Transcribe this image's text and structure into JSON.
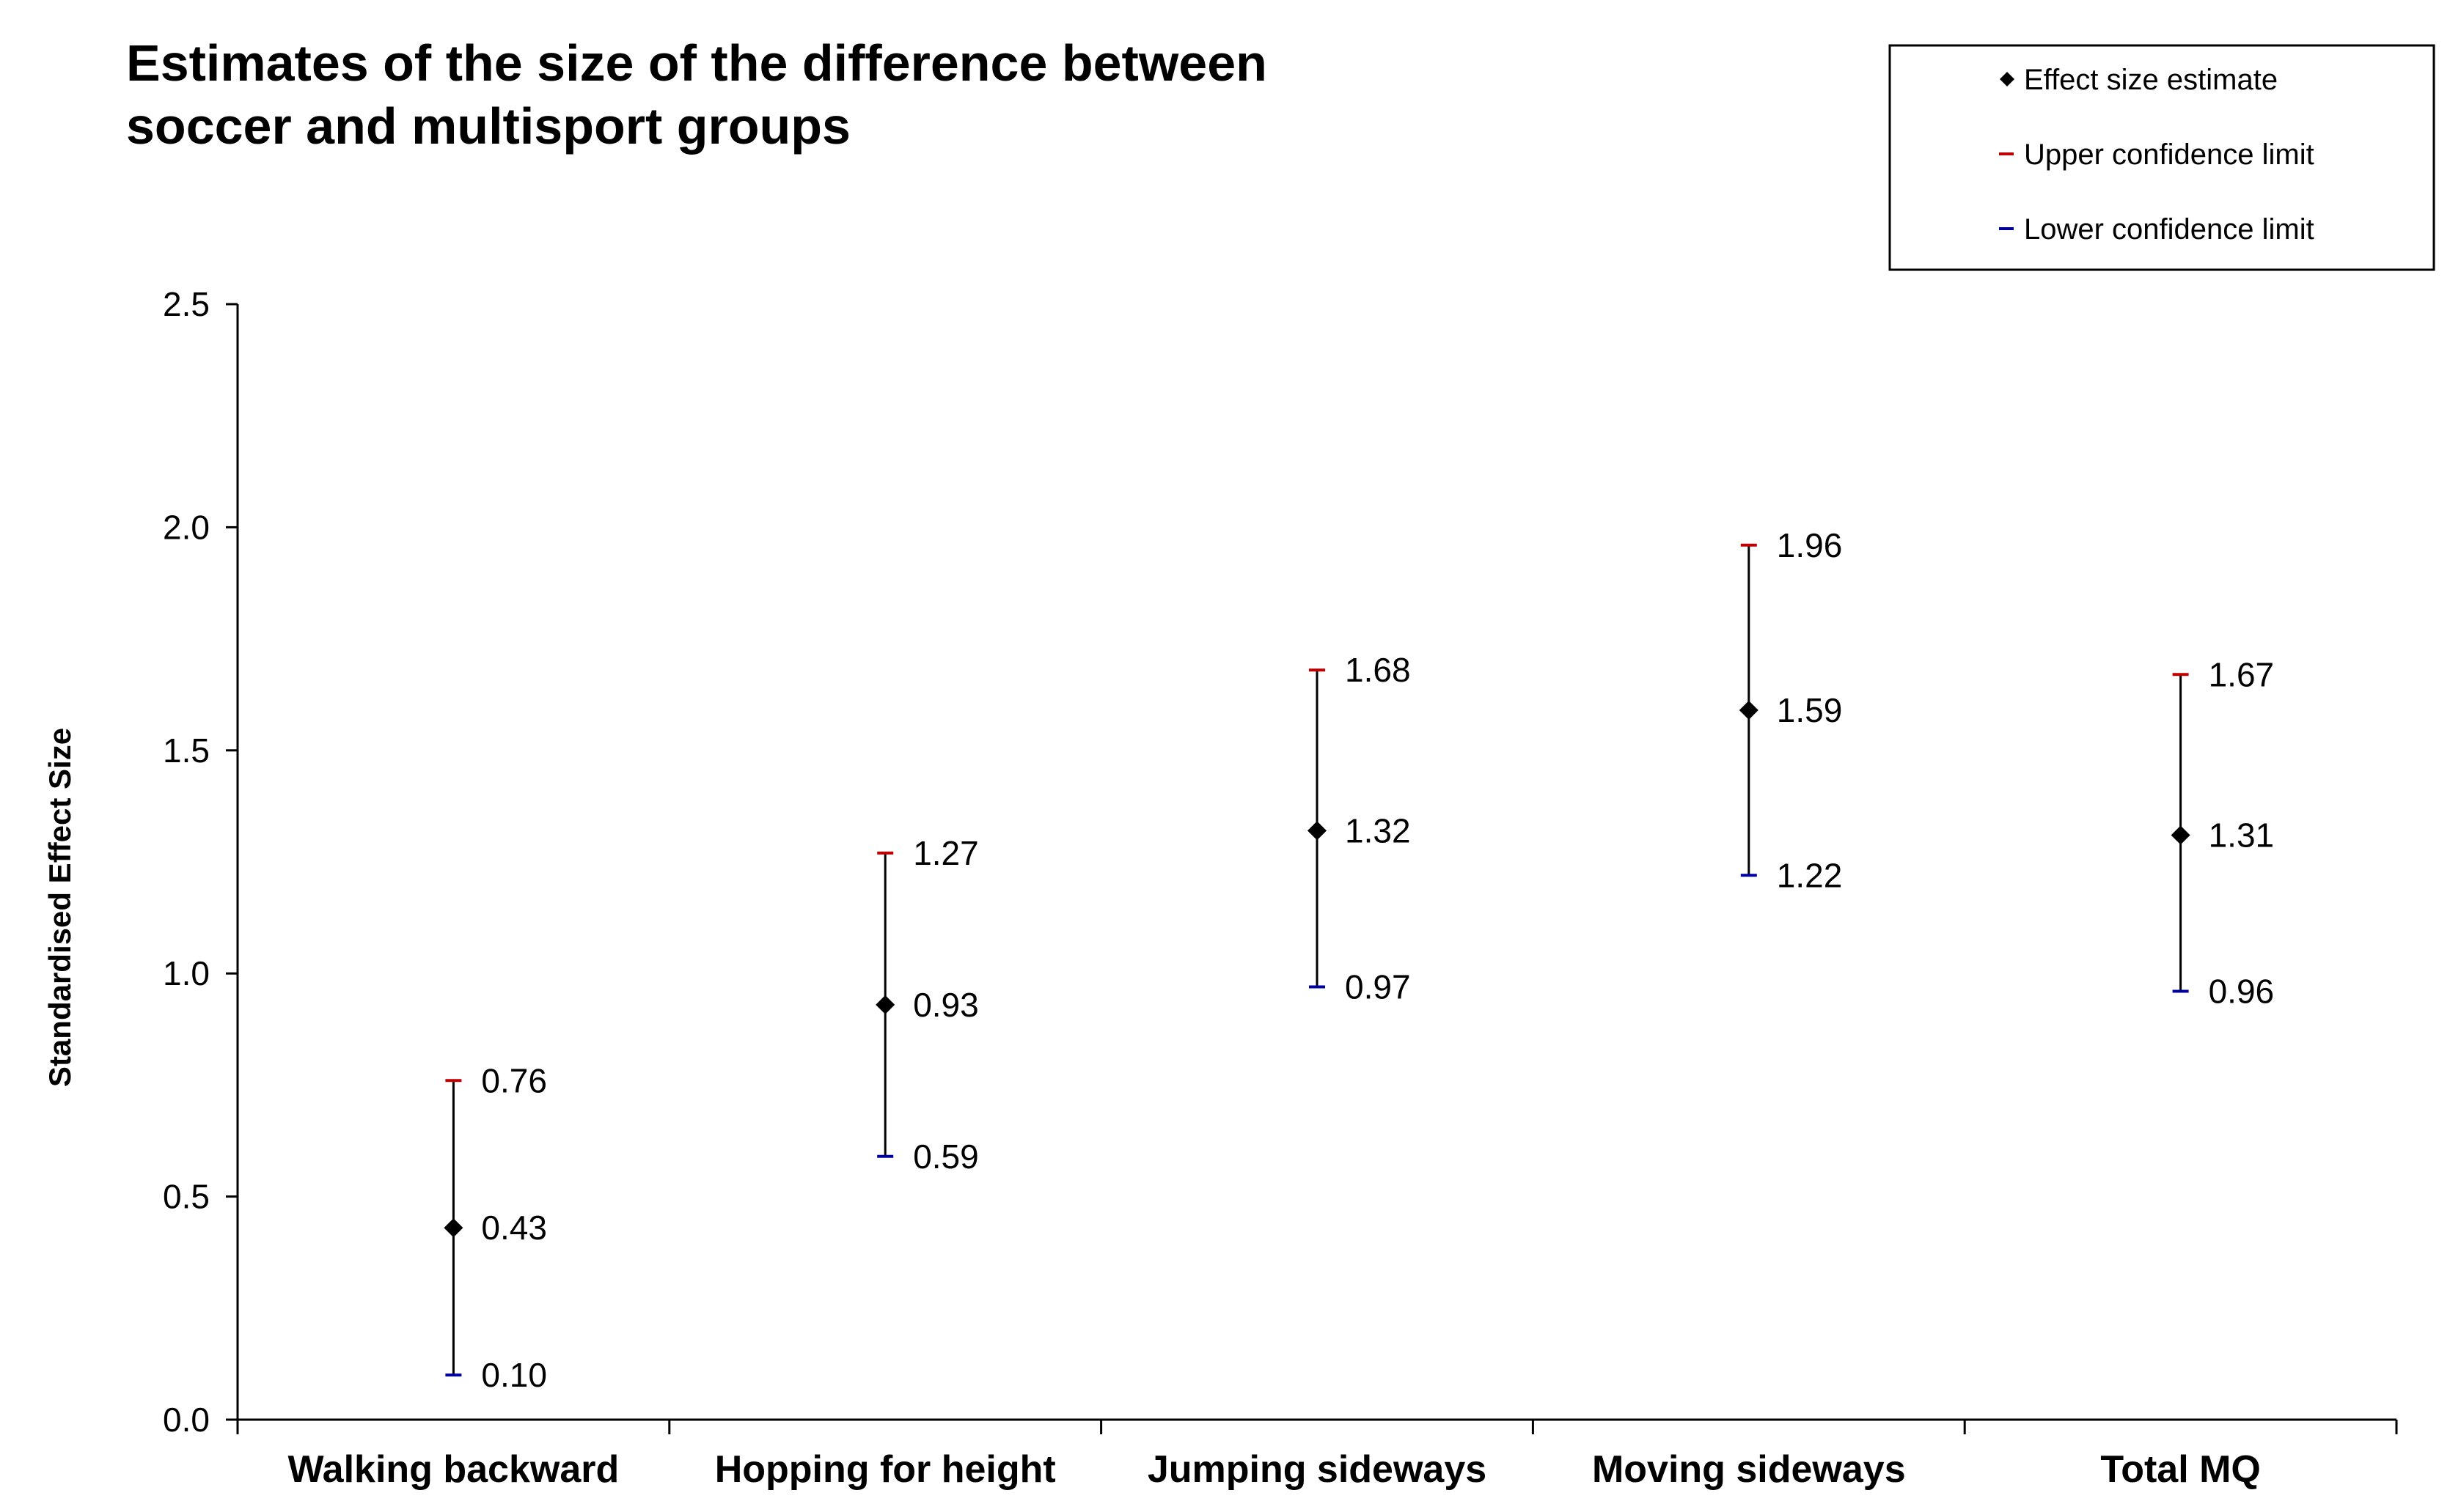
{
  "chart_data": {
    "type": "scatter",
    "title_lines": [
      "Estimates of the size of the difference between",
      "soccer and multisport groups"
    ],
    "ylabel": "Standardised Effect Size",
    "xlabel": "",
    "ylim": [
      0,
      2.5
    ],
    "yticks": [
      "0.0",
      "0.5",
      "1.0",
      "1.5",
      "2.0",
      "2.5"
    ],
    "categories": [
      "Walking backward",
      "Hopping for height",
      "Jumping sideways",
      "Moving sideways",
      "Total MQ"
    ],
    "series": [
      {
        "name": "Effect size estimate",
        "values": [
          0.43,
          0.93,
          1.32,
          1.59,
          1.31
        ],
        "labels": [
          "0.43",
          "0.93",
          "1.32",
          "1.59",
          "1.31"
        ],
        "color": "#000000"
      },
      {
        "name": "Upper confidence limit",
        "values": [
          0.76,
          1.27,
          1.68,
          1.96,
          1.67
        ],
        "labels": [
          "0.76",
          "1.27",
          "1.68",
          "1.96",
          "1.67"
        ],
        "color": "#c00000"
      },
      {
        "name": "Lower confidence limit",
        "values": [
          0.1,
          0.59,
          0.97,
          1.22,
          0.96
        ],
        "labels": [
          "0.10",
          "0.59",
          "0.97",
          "1.22",
          "0.96"
        ],
        "color": "#0000a0"
      }
    ],
    "legend_position": "top-right",
    "grid": false
  }
}
